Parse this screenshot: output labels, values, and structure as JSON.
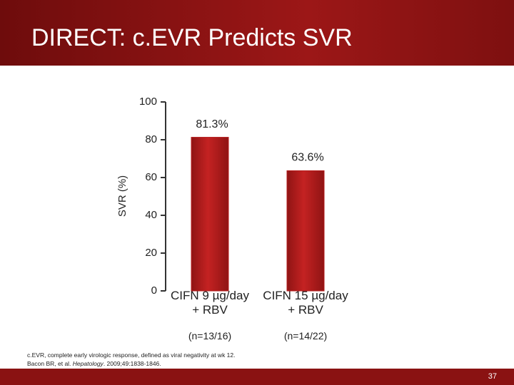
{
  "header": {
    "title": "DIRECT: c.EVR Predicts SVR"
  },
  "chart_data": {
    "type": "bar",
    "ylabel": "SVR (%)",
    "categories": [
      "CIFN 9 µg/day + RBV",
      "CIFN 15 µg/day + RBV"
    ],
    "sample_sizes": [
      "(n=13/16)",
      "(n=14/22)"
    ],
    "values": [
      81.3,
      63.6
    ],
    "value_labels": [
      "81.3%",
      "63.6%"
    ],
    "color": "#b51c1c",
    "ylim": [
      0,
      100
    ],
    "yticks": [
      0,
      20,
      40,
      60,
      80,
      100
    ]
  },
  "footnote": {
    "definition": "c.EVR, complete early virologic response, defined as viral negativity at wk 12.",
    "authors": "Bacon BR, et al. ",
    "journal": "Hepatology",
    "citation": ". 2009;49:1838-1846."
  },
  "page_number": "37"
}
